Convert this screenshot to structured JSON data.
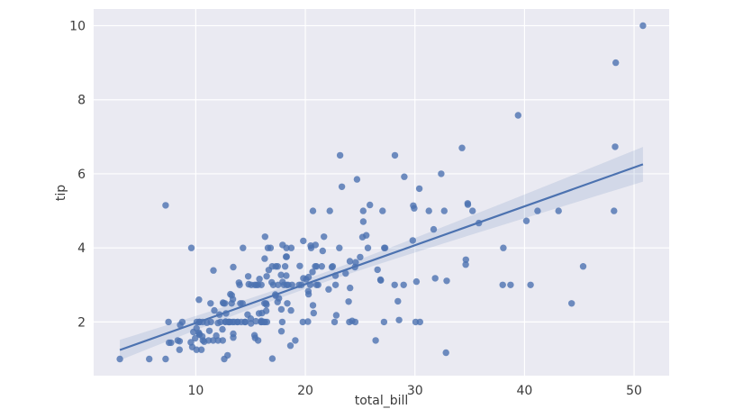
{
  "chart_data": {
    "type": "scatter",
    "title": "",
    "xlabel": "total_bill",
    "ylabel": "tip",
    "xlim": [
      0.68,
      53.2
    ],
    "ylim": [
      0.55,
      10.45
    ],
    "xticks": [
      10,
      20,
      30,
      40,
      50
    ],
    "yticks": [
      2,
      4,
      6,
      8,
      10
    ],
    "grid": true,
    "legend": "none",
    "regression": {
      "show": true,
      "ci_percent": 95
    },
    "points": [
      [
        16.99,
        1.01
      ],
      [
        10.34,
        1.66
      ],
      [
        21.01,
        3.5
      ],
      [
        23.68,
        3.31
      ],
      [
        24.59,
        3.61
      ],
      [
        25.29,
        4.71
      ],
      [
        8.77,
        2.0
      ],
      [
        26.88,
        3.12
      ],
      [
        15.04,
        1.96
      ],
      [
        14.78,
        3.23
      ],
      [
        10.27,
        1.71
      ],
      [
        35.26,
        5.0
      ],
      [
        15.42,
        1.57
      ],
      [
        18.43,
        3.0
      ],
      [
        14.83,
        3.02
      ],
      [
        21.58,
        3.92
      ],
      [
        10.33,
        1.67
      ],
      [
        16.29,
        3.71
      ],
      [
        16.97,
        3.5
      ],
      [
        20.65,
        3.35
      ],
      [
        17.92,
        4.08
      ],
      [
        20.29,
        2.75
      ],
      [
        15.77,
        2.23
      ],
      [
        39.42,
        7.58
      ],
      [
        19.82,
        3.18
      ],
      [
        17.81,
        2.34
      ],
      [
        13.37,
        2.0
      ],
      [
        12.69,
        2.0
      ],
      [
        21.7,
        4.3
      ],
      [
        19.65,
        3.0
      ],
      [
        9.55,
        1.45
      ],
      [
        18.35,
        2.5
      ],
      [
        15.06,
        3.0
      ],
      [
        20.69,
        2.45
      ],
      [
        17.78,
        3.27
      ],
      [
        24.06,
        3.64
      ],
      [
        16.31,
        2.0
      ],
      [
        16.93,
        3.07
      ],
      [
        18.69,
        2.31
      ],
      [
        31.27,
        5.0
      ],
      [
        16.04,
        2.24
      ],
      [
        17.46,
        2.54
      ],
      [
        13.94,
        3.06
      ],
      [
        9.68,
        1.32
      ],
      [
        30.4,
        5.6
      ],
      [
        18.29,
        3.0
      ],
      [
        22.23,
        5.0
      ],
      [
        32.4,
        6.0
      ],
      [
        28.55,
        2.05
      ],
      [
        18.04,
        3.0
      ],
      [
        12.54,
        2.5
      ],
      [
        10.29,
        2.6
      ],
      [
        34.81,
        5.2
      ],
      [
        9.94,
        1.56
      ],
      [
        25.56,
        4.34
      ],
      [
        19.49,
        3.51
      ],
      [
        38.01,
        3.0
      ],
      [
        26.41,
        1.5
      ],
      [
        11.24,
        1.76
      ],
      [
        48.27,
        6.73
      ],
      [
        20.29,
        3.21
      ],
      [
        13.81,
        2.0
      ],
      [
        11.02,
        1.98
      ],
      [
        18.29,
        3.76
      ],
      [
        17.59,
        2.64
      ],
      [
        20.08,
        3.15
      ],
      [
        16.45,
        2.47
      ],
      [
        3.07,
        1.0
      ],
      [
        20.23,
        2.01
      ],
      [
        15.01,
        2.09
      ],
      [
        12.02,
        1.97
      ],
      [
        17.07,
        3.0
      ],
      [
        26.86,
        3.14
      ],
      [
        25.28,
        5.0
      ],
      [
        14.73,
        2.2
      ],
      [
        10.51,
        1.25
      ],
      [
        17.92,
        3.08
      ],
      [
        27.2,
        4.0
      ],
      [
        22.76,
        3.0
      ],
      [
        17.29,
        2.71
      ],
      [
        19.44,
        3.0
      ],
      [
        16.66,
        3.4
      ],
      [
        10.07,
        1.83
      ],
      [
        32.68,
        5.0
      ],
      [
        15.98,
        2.03
      ],
      [
        34.83,
        5.17
      ],
      [
        13.03,
        2.0
      ],
      [
        18.28,
        4.0
      ],
      [
        24.71,
        5.85
      ],
      [
        21.16,
        3.0
      ],
      [
        28.97,
        3.0
      ],
      [
        22.49,
        3.5
      ],
      [
        5.75,
        1.0
      ],
      [
        16.32,
        4.3
      ],
      [
        22.75,
        3.25
      ],
      [
        40.17,
        4.73
      ],
      [
        27.28,
        4.0
      ],
      [
        12.03,
        1.5
      ],
      [
        21.01,
        3.0
      ],
      [
        12.46,
        1.5
      ],
      [
        11.35,
        2.5
      ],
      [
        15.38,
        3.0
      ],
      [
        44.3,
        2.5
      ],
      [
        22.42,
        3.48
      ],
      [
        20.92,
        4.08
      ],
      [
        15.36,
        1.64
      ],
      [
        20.49,
        4.06
      ],
      [
        25.21,
        4.29
      ],
      [
        18.24,
        3.76
      ],
      [
        14.31,
        4.0
      ],
      [
        14.0,
        3.0
      ],
      [
        7.25,
        1.0
      ],
      [
        38.07,
        4.0
      ],
      [
        23.95,
        2.55
      ],
      [
        25.71,
        4.0
      ],
      [
        17.31,
        3.5
      ],
      [
        29.93,
        5.07
      ],
      [
        10.65,
        1.5
      ],
      [
        12.43,
        1.8
      ],
      [
        24.08,
        2.92
      ],
      [
        11.69,
        2.31
      ],
      [
        13.42,
        1.68
      ],
      [
        14.26,
        2.5
      ],
      [
        15.95,
        2.0
      ],
      [
        12.48,
        2.52
      ],
      [
        29.8,
        4.2
      ],
      [
        8.52,
        1.48
      ],
      [
        14.52,
        2.0
      ],
      [
        11.38,
        2.0
      ],
      [
        22.82,
        2.18
      ],
      [
        19.08,
        1.5
      ],
      [
        20.27,
        2.83
      ],
      [
        11.17,
        1.5
      ],
      [
        12.26,
        2.0
      ],
      [
        18.26,
        3.25
      ],
      [
        8.51,
        1.25
      ],
      [
        10.33,
        2.0
      ],
      [
        14.15,
        2.0
      ],
      [
        16.0,
        2.0
      ],
      [
        13.16,
        2.75
      ],
      [
        17.47,
        3.5
      ],
      [
        34.3,
        6.7
      ],
      [
        41.19,
        5.0
      ],
      [
        27.05,
        5.0
      ],
      [
        16.43,
        2.3
      ],
      [
        8.35,
        1.5
      ],
      [
        18.64,
        1.36
      ],
      [
        11.87,
        1.63
      ],
      [
        9.78,
        1.73
      ],
      [
        7.51,
        2.0
      ],
      [
        14.07,
        2.5
      ],
      [
        13.13,
        2.0
      ],
      [
        17.26,
        2.74
      ],
      [
        24.55,
        2.0
      ],
      [
        19.77,
        2.0
      ],
      [
        29.85,
        5.14
      ],
      [
        48.17,
        5.0
      ],
      [
        25.0,
        3.75
      ],
      [
        13.39,
        2.61
      ],
      [
        16.49,
        2.0
      ],
      [
        21.5,
        3.5
      ],
      [
        12.66,
        2.5
      ],
      [
        16.21,
        2.0
      ],
      [
        13.81,
        2.0
      ],
      [
        17.51,
        3.0
      ],
      [
        24.52,
        3.48
      ],
      [
        20.76,
        2.24
      ],
      [
        31.71,
        4.5
      ],
      [
        10.59,
        1.61
      ],
      [
        10.63,
        2.0
      ],
      [
        50.81,
        10.0
      ],
      [
        15.81,
        3.16
      ],
      [
        7.25,
        5.15
      ],
      [
        31.85,
        3.18
      ],
      [
        16.82,
        4.0
      ],
      [
        32.9,
        3.11
      ],
      [
        17.89,
        2.0
      ],
      [
        14.48,
        2.0
      ],
      [
        9.6,
        4.0
      ],
      [
        34.63,
        3.55
      ],
      [
        34.65,
        3.68
      ],
      [
        23.33,
        5.65
      ],
      [
        45.35,
        3.5
      ],
      [
        23.17,
        6.5
      ],
      [
        40.55,
        3.0
      ],
      [
        20.69,
        5.0
      ],
      [
        20.9,
        3.5
      ],
      [
        30.46,
        2.0
      ],
      [
        18.15,
        3.5
      ],
      [
        23.1,
        4.0
      ],
      [
        15.69,
        1.5
      ],
      [
        19.81,
        4.19
      ],
      [
        28.44,
        2.56
      ],
      [
        15.48,
        2.02
      ],
      [
        16.58,
        4.0
      ],
      [
        7.56,
        1.44
      ],
      [
        10.34,
        2.0
      ],
      [
        43.11,
        5.0
      ],
      [
        13.0,
        2.0
      ],
      [
        13.51,
        2.0
      ],
      [
        18.71,
        4.0
      ],
      [
        12.74,
        2.01
      ],
      [
        13.0,
        2.0
      ],
      [
        16.4,
        2.5
      ],
      [
        20.53,
        4.0
      ],
      [
        16.47,
        3.23
      ],
      [
        26.59,
        3.41
      ],
      [
        38.73,
        3.0
      ],
      [
        24.27,
        2.03
      ],
      [
        12.76,
        2.23
      ],
      [
        30.06,
        2.0
      ],
      [
        25.89,
        5.16
      ],
      [
        48.33,
        9.0
      ],
      [
        13.27,
        2.5
      ],
      [
        28.17,
        6.5
      ],
      [
        12.9,
        1.1
      ],
      [
        28.15,
        3.0
      ],
      [
        11.59,
        1.5
      ],
      [
        7.74,
        1.44
      ],
      [
        30.14,
        3.09
      ],
      [
        12.16,
        2.2
      ],
      [
        13.42,
        3.48
      ],
      [
        8.58,
        1.92
      ],
      [
        15.98,
        3.0
      ],
      [
        13.42,
        1.58
      ],
      [
        16.27,
        2.5
      ],
      [
        10.09,
        2.0
      ],
      [
        20.45,
        3.0
      ],
      [
        13.28,
        2.72
      ],
      [
        22.12,
        2.88
      ],
      [
        24.01,
        2.0
      ],
      [
        15.69,
        3.0
      ],
      [
        11.61,
        3.39
      ],
      [
        10.77,
        1.47
      ],
      [
        15.53,
        3.0
      ],
      [
        10.07,
        1.25
      ],
      [
        12.6,
        1.0
      ],
      [
        32.83,
        1.17
      ],
      [
        35.83,
        4.67
      ],
      [
        29.03,
        5.92
      ],
      [
        27.18,
        2.0
      ],
      [
        22.67,
        2.0
      ],
      [
        17.82,
        1.75
      ],
      [
        18.78,
        3.0
      ]
    ]
  },
  "style": {
    "fig_bg": "#ffffff",
    "plot_bg": "#eaeaf2",
    "grid_color": "#ffffff",
    "point_color": "#4c72b0",
    "point_opacity": 0.8,
    "line_color": "#4c72b0",
    "band_color": "#4c72b0",
    "band_opacity": 0.15,
    "text_color": "#3b3b3b"
  }
}
